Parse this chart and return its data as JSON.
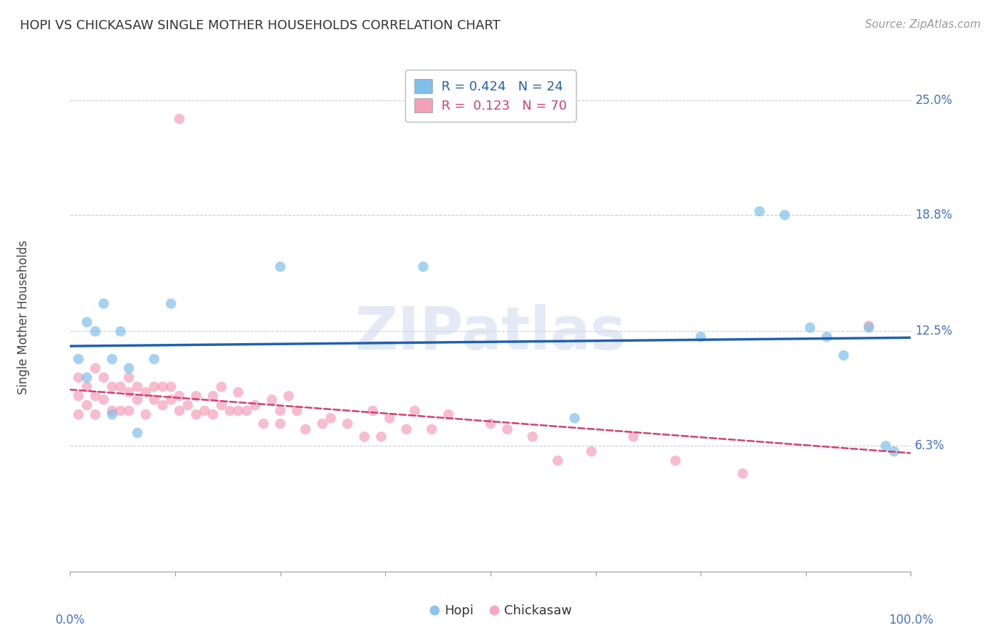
{
  "title": "HOPI VS CHICKASAW SINGLE MOTHER HOUSEHOLDS CORRELATION CHART",
  "source": "Source: ZipAtlas.com",
  "ylabel": "Single Mother Households",
  "ytick_labels": [
    "6.3%",
    "12.5%",
    "18.8%",
    "25.0%"
  ],
  "ytick_values": [
    0.063,
    0.125,
    0.188,
    0.25
  ],
  "hopi_color": "#7fbfea",
  "chickasaw_color": "#f4a0b8",
  "hopi_line_color": "#2060b0",
  "chickasaw_line_color": "#d04070",
  "hopi_x": [
    0.01,
    0.02,
    0.02,
    0.03,
    0.04,
    0.05,
    0.05,
    0.06,
    0.07,
    0.08,
    0.1,
    0.12,
    0.25,
    0.42,
    0.6,
    0.75,
    0.82,
    0.85,
    0.88,
    0.9,
    0.92,
    0.95,
    0.97,
    0.98
  ],
  "hopi_y": [
    0.11,
    0.13,
    0.1,
    0.125,
    0.14,
    0.11,
    0.08,
    0.125,
    0.105,
    0.07,
    0.11,
    0.14,
    0.16,
    0.16,
    0.078,
    0.122,
    0.19,
    0.188,
    0.127,
    0.122,
    0.112,
    0.127,
    0.063,
    0.06
  ],
  "chickasaw_x": [
    0.01,
    0.01,
    0.01,
    0.02,
    0.02,
    0.03,
    0.03,
    0.03,
    0.04,
    0.04,
    0.05,
    0.05,
    0.06,
    0.06,
    0.07,
    0.07,
    0.07,
    0.08,
    0.08,
    0.09,
    0.09,
    0.1,
    0.1,
    0.11,
    0.11,
    0.12,
    0.12,
    0.13,
    0.13,
    0.14,
    0.15,
    0.15,
    0.16,
    0.17,
    0.17,
    0.18,
    0.18,
    0.19,
    0.2,
    0.2,
    0.21,
    0.22,
    0.23,
    0.24,
    0.25,
    0.25,
    0.26,
    0.27,
    0.28,
    0.3,
    0.31,
    0.33,
    0.35,
    0.36,
    0.37,
    0.38,
    0.4,
    0.41,
    0.43,
    0.45,
    0.5,
    0.52,
    0.55,
    0.58,
    0.62,
    0.67,
    0.72,
    0.8,
    0.95,
    0.13
  ],
  "chickasaw_y": [
    0.09,
    0.1,
    0.08,
    0.095,
    0.085,
    0.105,
    0.09,
    0.08,
    0.088,
    0.1,
    0.095,
    0.082,
    0.095,
    0.082,
    0.092,
    0.1,
    0.082,
    0.088,
    0.095,
    0.092,
    0.08,
    0.088,
    0.095,
    0.085,
    0.095,
    0.088,
    0.095,
    0.082,
    0.09,
    0.085,
    0.09,
    0.08,
    0.082,
    0.09,
    0.08,
    0.085,
    0.095,
    0.082,
    0.092,
    0.082,
    0.082,
    0.085,
    0.075,
    0.088,
    0.082,
    0.075,
    0.09,
    0.082,
    0.072,
    0.075,
    0.078,
    0.075,
    0.068,
    0.082,
    0.068,
    0.078,
    0.072,
    0.082,
    0.072,
    0.08,
    0.075,
    0.072,
    0.068,
    0.055,
    0.06,
    0.068,
    0.055,
    0.048,
    0.128,
    0.24
  ]
}
